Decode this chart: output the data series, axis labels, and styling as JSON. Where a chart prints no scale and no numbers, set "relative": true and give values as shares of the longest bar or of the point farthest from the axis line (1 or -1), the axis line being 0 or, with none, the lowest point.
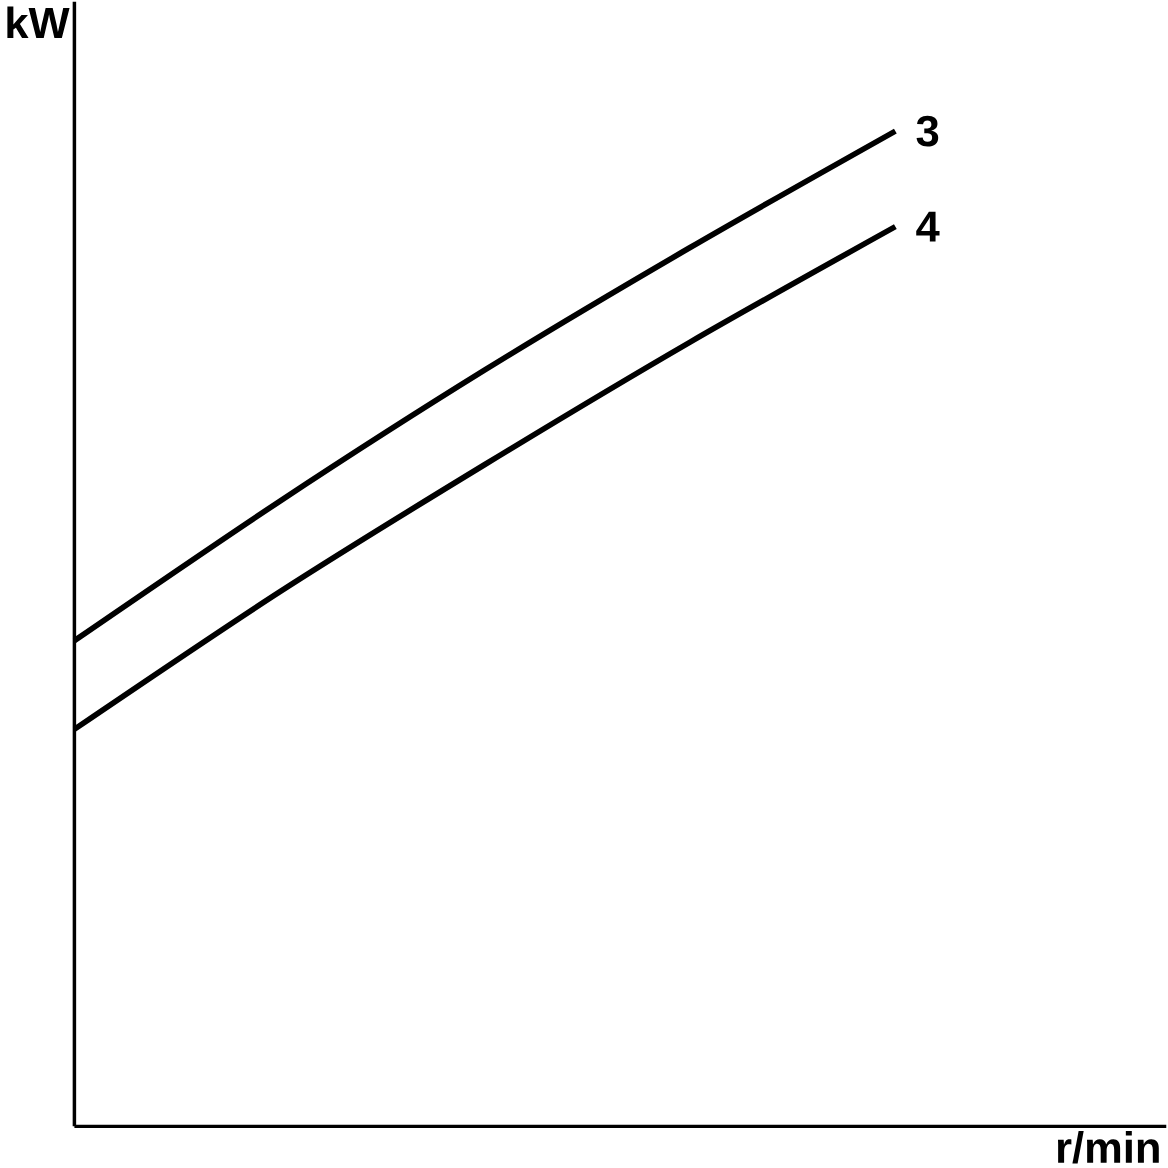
{
  "chart_data": {
    "type": "line",
    "relative": true,
    "xlabel": "r/min",
    "ylabel": "kW",
    "categories": [
      null,
      null,
      null,
      null,
      null
    ],
    "series": [
      {
        "name": "3",
        "color": "#000000",
        "values": [
          0.488,
          0.628,
          0.76,
          0.883,
          1.0
        ]
      },
      {
        "name": "4",
        "color": "#000000",
        "values": [
          0.399,
          0.537,
          0.665,
          0.788,
          0.904
        ]
      }
    ]
  }
}
